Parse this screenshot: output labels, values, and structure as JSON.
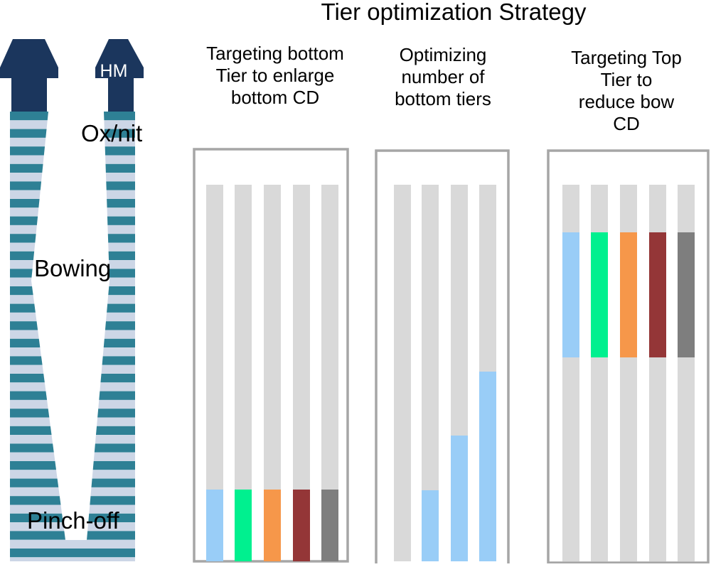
{
  "title": "Tier optimization Strategy",
  "structure": {
    "hardmask_label": "HM",
    "layers_label": "Ox/nit",
    "bowing_label": "Bowing",
    "pinch_label": "Pinch-off",
    "colors": {
      "hardmask": "#1b365d",
      "layer_dark": "#2e8095",
      "layer_light": "#ccd6e6"
    }
  },
  "panels": [
    {
      "heading": [
        "Targeting bottom",
        "Tier to enlarge",
        "bottom CD"
      ],
      "columns": [
        {
          "color": "#99cdf7",
          "highlight": "bottom"
        },
        {
          "color": "#00f08f",
          "highlight": "bottom"
        },
        {
          "color": "#f6974a",
          "highlight": "bottom"
        },
        {
          "color": "#943637",
          "highlight": "bottom"
        },
        {
          "color": "#7e7e7e",
          "highlight": "bottom"
        }
      ]
    },
    {
      "heading": [
        "Optimizing",
        "number of",
        "bottom tiers"
      ],
      "columns": [
        {
          "color": "#99cdf7",
          "highlight": "none"
        },
        {
          "color": "#99cdf7",
          "highlight": "bottom-1"
        },
        {
          "color": "#99cdf7",
          "highlight": "bottom-2"
        },
        {
          "color": "#99cdf7",
          "highlight": "bottom-3"
        }
      ]
    },
    {
      "heading": [
        "Targeting Top",
        "Tier to",
        "reduce bow",
        "CD"
      ],
      "columns": [
        {
          "color": "#99cdf7",
          "highlight": "top"
        },
        {
          "color": "#00f08f",
          "highlight": "top"
        },
        {
          "color": "#f6974a",
          "highlight": "top"
        },
        {
          "color": "#943637",
          "highlight": "top"
        },
        {
          "color": "#7e7e7e",
          "highlight": "top"
        }
      ]
    }
  ],
  "colors": {
    "column_base": "#d9d9d9",
    "panel_border": "#a6a6a6"
  }
}
